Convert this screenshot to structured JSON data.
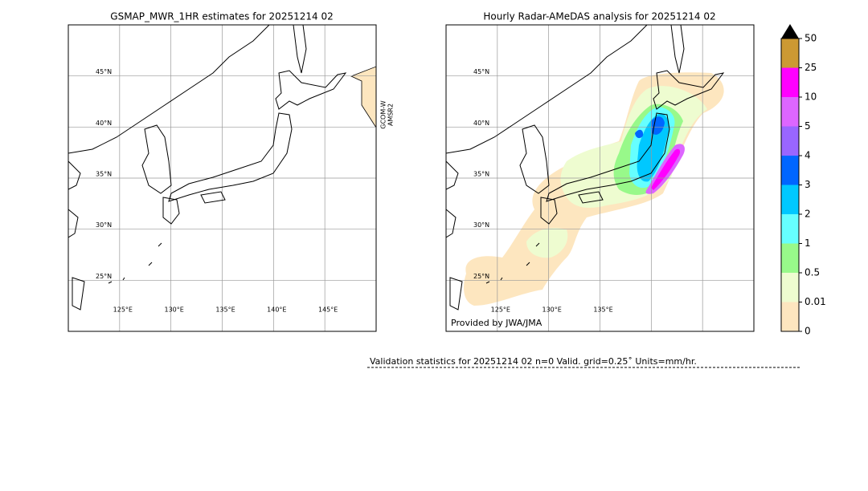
{
  "panels": [
    {
      "title": "GSMAP_MWR_1HR estimates for 20251214 02",
      "lon_range": [
        120,
        150
      ],
      "lat_range": [
        20,
        50
      ],
      "lat_ticks": [
        {
          "value": 45,
          "label": "45°N"
        },
        {
          "value": 40,
          "label": "40°N"
        },
        {
          "value": 35,
          "label": "35°N"
        },
        {
          "value": 30,
          "label": "30°N"
        },
        {
          "value": 25,
          "label": "25°N"
        }
      ],
      "lon_ticks": [
        {
          "value": 125,
          "label": "125°E"
        },
        {
          "value": 130,
          "label": "130°E"
        },
        {
          "value": 135,
          "label": "135°E"
        },
        {
          "value": 140,
          "label": "140°E"
        },
        {
          "value": 145,
          "label": "145°E"
        }
      ],
      "satellite_label": [
        "GCOM-W",
        "AMSR2"
      ]
    },
    {
      "title": "Hourly Radar-AMeDAS analysis for 20251214 02",
      "lon_range": [
        120,
        150
      ],
      "lat_range": [
        20,
        50
      ],
      "lat_ticks": [
        {
          "value": 45,
          "label": "45°N"
        },
        {
          "value": 40,
          "label": "40°N"
        },
        {
          "value": 35,
          "label": "35°N"
        },
        {
          "value": 30,
          "label": "30°N"
        },
        {
          "value": 25,
          "label": "25°N"
        }
      ],
      "lon_ticks": [
        {
          "value": 125,
          "label": "125°E"
        },
        {
          "value": 130,
          "label": "130°E"
        },
        {
          "value": 135,
          "label": "135°E"
        },
        {
          "value": 140,
          "label": null
        },
        {
          "value": 145,
          "label": null
        }
      ],
      "credit": "Provided by JWA/JMA"
    }
  ],
  "colorbar": {
    "levels": [
      0,
      0.01,
      0.5,
      1,
      2,
      3,
      4,
      5,
      10,
      25,
      50
    ],
    "colors": [
      "#fde6bf",
      "#eefcd0",
      "#98f98a",
      "#66ffff",
      "#00c8ff",
      "#0066ff",
      "#9966ff",
      "#dd66ff",
      "#ff00ff",
      "#cc9933"
    ]
  },
  "footer": "Validation statistics for 20251214  02  n=0 Valid. grid=0.25˚ Units=mm/hr."
}
